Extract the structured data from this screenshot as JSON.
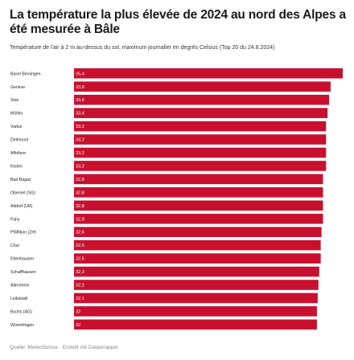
{
  "title": "La température la plus élevée de 2024 au nord des Alpes a été mesurée à Bâle",
  "subtitle": "Température de l'air à 2 m au-dessus du sol, maximum journalier en degrés Celsius (Top 20 du 24.8.2024)",
  "source": "Quelle: MeteoSuisse · Erstellt mit Datawrapper",
  "colors": {
    "bar": "#c8102e",
    "text": "#1a1a1a"
  },
  "chart_data": {
    "type": "bar",
    "orientation": "horizontal",
    "categories": [
      "Basel Binningen",
      "Genève",
      "Sion",
      "Möhlin",
      "Vaduz",
      "Delémont",
      "Affoltern",
      "Kloten",
      "Bad Ragaz",
      "Oberriet (SG)",
      "Altdorf (UR)",
      "Fahy",
      "Pfäffikon (ZH)",
      "Chur",
      "Ettenhausen",
      "Schaffhausen",
      "Altenrhein",
      "Leibstadt",
      "Buchs (AG)",
      "Würenlingen"
    ],
    "values": [
      35.4,
      33.8,
      33.6,
      33.4,
      33.2,
      33.2,
      33.2,
      33.2,
      32.8,
      32.8,
      32.8,
      32.8,
      32.6,
      32.5,
      32.5,
      32.3,
      32.2,
      32.1,
      32,
      32
    ],
    "value_labels": [
      "35,4",
      "33,8",
      "33,6",
      "33,4",
      "33,2",
      "33,2",
      "33,2",
      "33,2",
      "32,8",
      "32,8",
      "32,8",
      "32,8",
      "32,6",
      "32,5",
      "32,5",
      "32,3",
      "32,2",
      "32,1",
      "32",
      "32"
    ],
    "xlim": [
      0,
      35.4
    ],
    "grid": false,
    "legend": "none"
  }
}
